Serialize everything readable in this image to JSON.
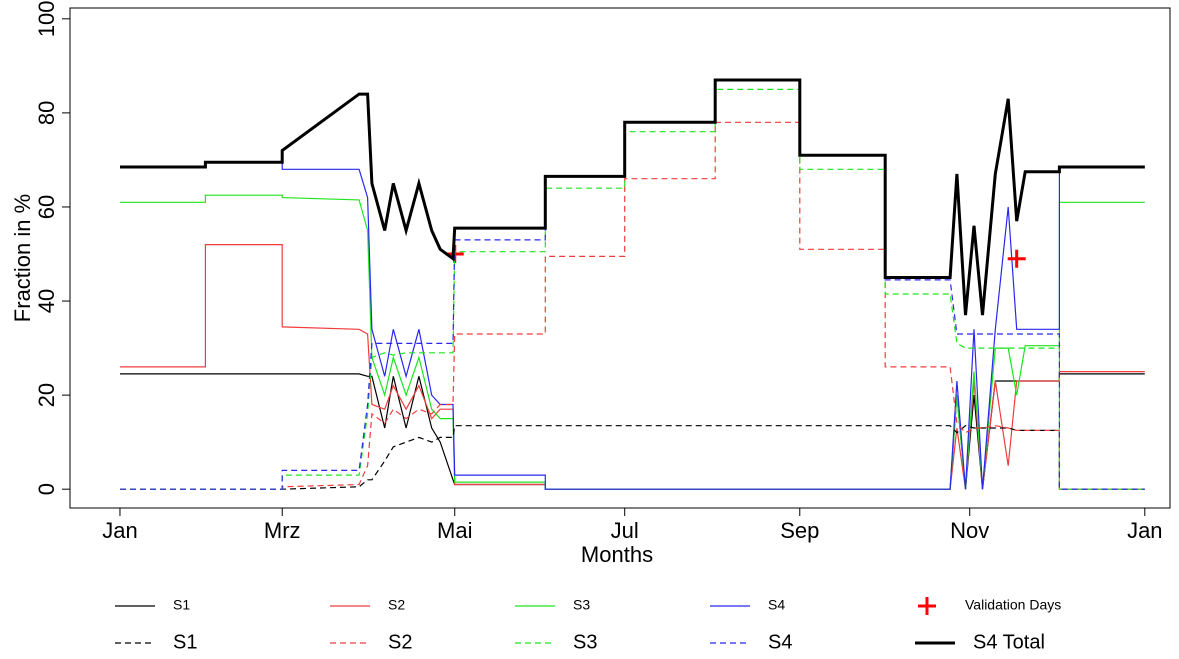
{
  "chart_data": {
    "type": "line",
    "x_label": "Months",
    "y_label": "Fraction in %",
    "xlim": [
      -0.585,
      12.295
    ],
    "ylim": [
      -4,
      102.3
    ],
    "xticks": [
      {
        "value": 0,
        "label": "Jan"
      },
      {
        "value": 1.9,
        "label": "Mrz"
      },
      {
        "value": 3.92,
        "label": "Mai"
      },
      {
        "value": 5.91,
        "label": "Jul"
      },
      {
        "value": 7.96,
        "label": "Sep"
      },
      {
        "value": 9.95,
        "label": "Nov"
      },
      {
        "value": 12,
        "label": "Jan"
      }
    ],
    "yticks": [
      0,
      20,
      40,
      60,
      80,
      100
    ],
    "x": [
      0,
      1.0,
      1.0,
      1.9,
      1.9,
      2.8,
      2.9,
      2.95,
      3.1,
      3.2,
      3.35,
      3.5,
      3.65,
      3.75,
      3.9,
      3.92,
      4.98,
      4.98,
      5.91,
      5.91,
      6.97,
      6.97,
      7.96,
      7.96,
      8.96,
      8.96,
      9.72,
      9.8,
      9.9,
      10.0,
      10.1,
      10.25,
      10.4,
      10.5,
      10.6,
      11.0,
      11.0,
      12.0
    ],
    "series": [
      {
        "name": "S1",
        "color": "#000000",
        "dash": false,
        "values": [
          24.5,
          24.5,
          24.5,
          24.5,
          24.5,
          24.5,
          24,
          24,
          13,
          24,
          13,
          24,
          13,
          10,
          2,
          1,
          1,
          0,
          0,
          0,
          0,
          0,
          0,
          0,
          0,
          0,
          0,
          20,
          0,
          20,
          0,
          23,
          23,
          23,
          23,
          23,
          24.5,
          24.5
        ]
      },
      {
        "name": "S2",
        "color": "#f03c3c",
        "dash": false,
        "values": [
          26,
          26,
          52,
          52,
          34.5,
          34,
          33,
          18,
          17,
          22,
          17,
          22,
          15,
          17,
          17,
          1,
          1,
          0,
          0,
          0,
          0,
          0,
          0,
          0,
          0,
          0,
          0,
          13,
          0,
          23,
          0,
          23,
          5,
          23,
          23,
          23,
          25,
          25
        ]
      },
      {
        "name": "S3",
        "color": "#1ee61e",
        "dash": false,
        "values": [
          61,
          61,
          62.5,
          62.5,
          62,
          61.5,
          55,
          28,
          20,
          28,
          20,
          28,
          17,
          15,
          15,
          1.5,
          1.5,
          0,
          0,
          0,
          0,
          0,
          0,
          0,
          0,
          0,
          0,
          20,
          0,
          25,
          0,
          30,
          30,
          20,
          30.5,
          30.5,
          61,
          61
        ]
      },
      {
        "name": "S4",
        "color": "#2828f0",
        "dash": false,
        "values": [
          68.5,
          68.5,
          69.5,
          69.5,
          68,
          68,
          62,
          34,
          24,
          34,
          24,
          34,
          20,
          18,
          18,
          3,
          3,
          0,
          0,
          0,
          0,
          0,
          0,
          0,
          0,
          0,
          0,
          23,
          0,
          34,
          0,
          34,
          60,
          34,
          34,
          34,
          68.5,
          68.5
        ]
      },
      {
        "name": "Validation Days",
        "type": "scatter",
        "color": "#ff0000",
        "x": [
          3.92,
          10.5
        ],
        "values": [
          50,
          49
        ]
      },
      {
        "name": "S1",
        "color": "#000000",
        "dash": true,
        "values": [
          0,
          0,
          0,
          0,
          0,
          0.5,
          2,
          2,
          6,
          9,
          10,
          11,
          10,
          11,
          11,
          13.5,
          13.5,
          13.5,
          13.5,
          13.5,
          13.5,
          13.5,
          13.5,
          13.5,
          13.5,
          13.5,
          13.5,
          12,
          13.5,
          13,
          13,
          13,
          13,
          12.5,
          12.5,
          12.5,
          0,
          0
        ]
      },
      {
        "name": "S2",
        "color": "#f03c3c",
        "dash": true,
        "values": [
          0,
          0,
          0,
          0,
          0.5,
          1,
          5,
          16,
          14,
          17,
          15,
          17,
          16,
          18,
          18,
          33,
          33,
          49.5,
          49.5,
          66,
          66,
          78,
          78,
          51,
          51,
          26,
          26,
          14,
          12,
          13,
          13,
          13.5,
          13,
          12.5,
          12.5,
          12.5,
          0,
          0
        ]
      },
      {
        "name": "S3",
        "color": "#1ee61e",
        "dash": true,
        "values": [
          0,
          0,
          0,
          0,
          3,
          3,
          16,
          28,
          29,
          28.5,
          29,
          29,
          29,
          29,
          29,
          50.5,
          50.5,
          64,
          64,
          76,
          76,
          85,
          85,
          68,
          68,
          41.5,
          41.5,
          31,
          30,
          30,
          30,
          30,
          30,
          30,
          30,
          30,
          0,
          0
        ]
      },
      {
        "name": "S4",
        "color": "#2828f0",
        "dash": true,
        "values": [
          0,
          0,
          0,
          0,
          4,
          4,
          18,
          31,
          31,
          31,
          31,
          31,
          31,
          31,
          31,
          53,
          53,
          66.5,
          66.5,
          78,
          78,
          87,
          87,
          71,
          71,
          44.5,
          44.5,
          33,
          33,
          33,
          33,
          33,
          33,
          33,
          33,
          33,
          0,
          0
        ]
      },
      {
        "name": "S4 Total",
        "color": "#000000",
        "dash": false,
        "thick": true,
        "values": [
          68.5,
          68.5,
          69.5,
          69.5,
          72,
          84,
          84,
          65,
          55,
          65,
          55,
          65,
          55,
          51,
          49,
          55.5,
          55.5,
          66.5,
          66.5,
          78,
          78,
          87,
          87,
          71,
          71,
          45,
          45,
          67,
          37,
          56,
          37,
          67,
          83,
          57,
          67.5,
          67.5,
          68.5,
          68.5
        ]
      }
    ]
  }
}
